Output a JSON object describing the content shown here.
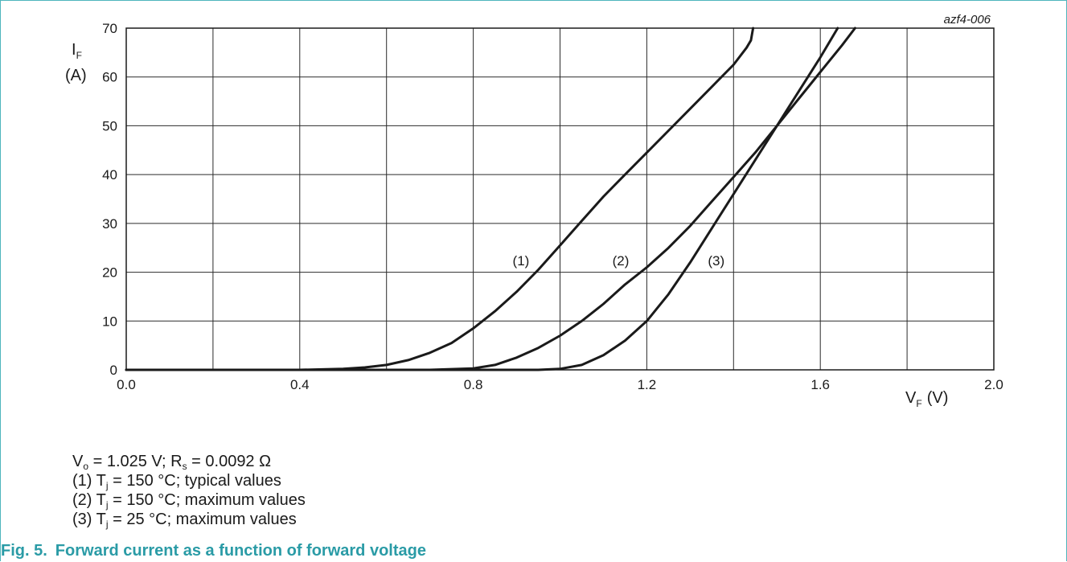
{
  "chart_data": {
    "type": "line",
    "code": "azf4-006",
    "ylabel_main": "I",
    "ylabel_sub": "F",
    "ylabel_unit": "(A)",
    "xlabel_main": "V",
    "xlabel_sub": "F",
    "xlabel_unit": "(V)",
    "xlim": [
      0,
      2.0
    ],
    "ylim": [
      0,
      70
    ],
    "x_ticks": [
      "0.0",
      "0.4",
      "0.8",
      "1.2",
      "1.6",
      "2.0"
    ],
    "y_ticks": [
      "0",
      "10",
      "20",
      "30",
      "40",
      "50",
      "60",
      "70"
    ],
    "grid": true,
    "series": [
      {
        "name": "(1)",
        "label_at": [
          0.91,
          22.4
        ],
        "points": [
          [
            0.0,
            0
          ],
          [
            0.4,
            0
          ],
          [
            0.5,
            0.2
          ],
          [
            0.55,
            0.5
          ],
          [
            0.6,
            1.0
          ],
          [
            0.65,
            2.0
          ],
          [
            0.7,
            3.5
          ],
          [
            0.75,
            5.5
          ],
          [
            0.8,
            8.5
          ],
          [
            0.85,
            12.0
          ],
          [
            0.9,
            16.0
          ],
          [
            0.95,
            20.5
          ],
          [
            1.0,
            25.5
          ],
          [
            1.05,
            30.5
          ],
          [
            1.1,
            35.5
          ],
          [
            1.15,
            40.0
          ],
          [
            1.2,
            44.5
          ],
          [
            1.25,
            49.0
          ],
          [
            1.3,
            53.5
          ],
          [
            1.35,
            58.0
          ],
          [
            1.4,
            62.5
          ],
          [
            1.43,
            66.0
          ],
          [
            1.44,
            67.5
          ],
          [
            1.445,
            70
          ]
        ]
      },
      {
        "name": "(2)",
        "label_at": [
          1.14,
          22.4
        ],
        "points": [
          [
            0.0,
            0
          ],
          [
            0.7,
            0
          ],
          [
            0.8,
            0.3
          ],
          [
            0.85,
            1.0
          ],
          [
            0.9,
            2.5
          ],
          [
            0.95,
            4.5
          ],
          [
            1.0,
            7.0
          ],
          [
            1.05,
            10.0
          ],
          [
            1.1,
            13.5
          ],
          [
            1.15,
            17.5
          ],
          [
            1.2,
            21.0
          ],
          [
            1.25,
            25.0
          ],
          [
            1.3,
            29.5
          ],
          [
            1.35,
            34.5
          ],
          [
            1.4,
            39.5
          ],
          [
            1.45,
            44.5
          ],
          [
            1.5,
            50.0
          ],
          [
            1.55,
            55.5
          ],
          [
            1.6,
            61.0
          ],
          [
            1.65,
            66.5
          ],
          [
            1.68,
            70
          ]
        ]
      },
      {
        "name": "(3)",
        "label_at": [
          1.36,
          22.4
        ],
        "points": [
          [
            0.0,
            0
          ],
          [
            0.95,
            0
          ],
          [
            1.0,
            0.2
          ],
          [
            1.05,
            1.0
          ],
          [
            1.1,
            3.0
          ],
          [
            1.15,
            6.0
          ],
          [
            1.2,
            10.0
          ],
          [
            1.25,
            15.5
          ],
          [
            1.3,
            22.0
          ],
          [
            1.35,
            29.0
          ],
          [
            1.4,
            36.0
          ],
          [
            1.45,
            43.0
          ],
          [
            1.5,
            50.0
          ],
          [
            1.55,
            57.0
          ],
          [
            1.6,
            64.0
          ],
          [
            1.64,
            70
          ]
        ]
      }
    ]
  },
  "notes": {
    "vo_main": "V",
    "vo_sub": "o",
    "vo_rest": " = 1.025 V; R",
    "rs_sub": "s",
    "rs_rest": " = 0.0092 Ω",
    "n1_pre": "(1) T",
    "n1_sub": "j",
    "n1_post": " = 150 °C; typical values",
    "n2_pre": "(2) T",
    "n2_sub": "j",
    "n2_post": " = 150 °C; maximum values",
    "n3_pre": "(3) T",
    "n3_sub": "j",
    "n3_post": " = 25 °C; maximum values"
  },
  "caption": {
    "fig_number": "Fig. 5.",
    "title": "Forward current as a function of forward voltage"
  }
}
